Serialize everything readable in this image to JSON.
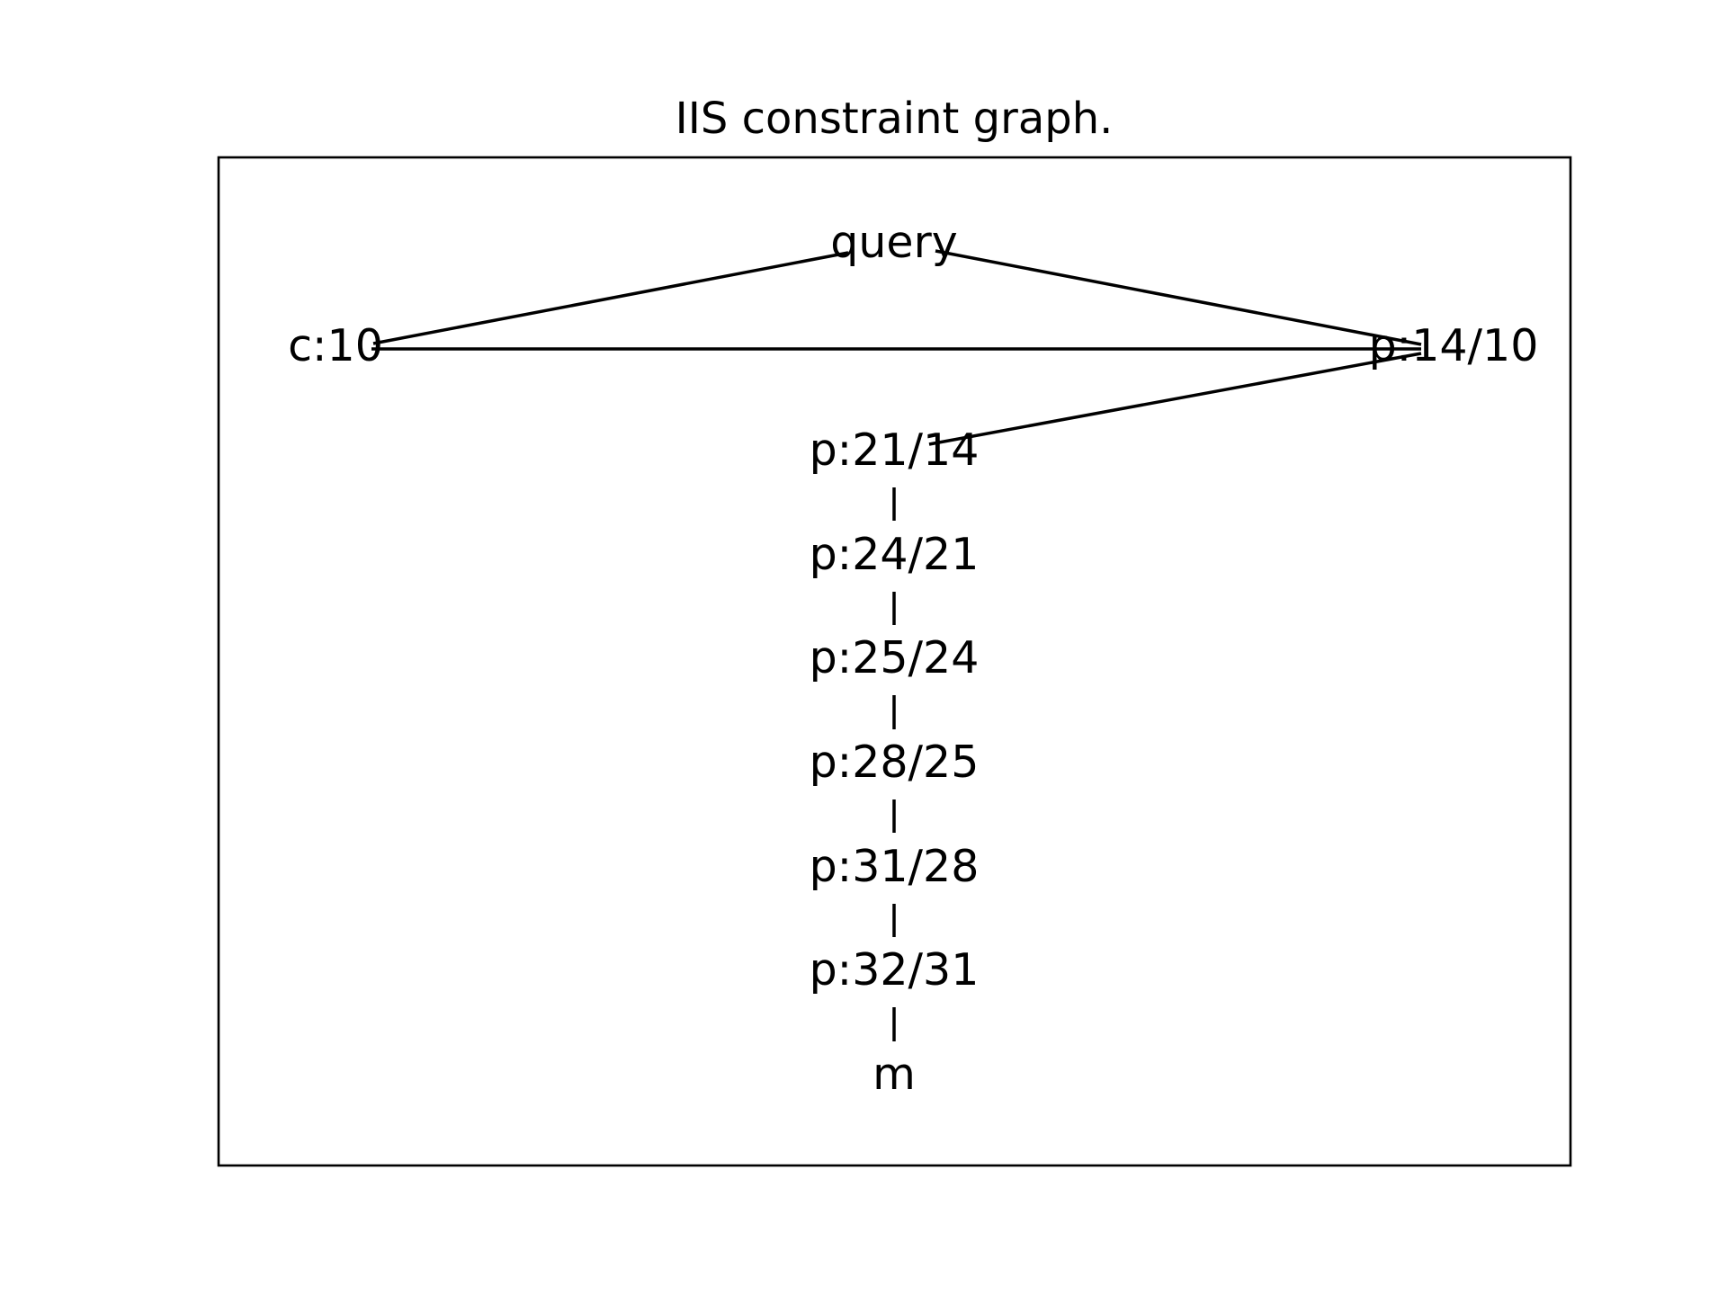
{
  "diagram": {
    "title": "IIS constraint graph.",
    "nodes": [
      {
        "id": "query",
        "label": "query"
      },
      {
        "id": "c10",
        "label": "c:10"
      },
      {
        "id": "p14_10",
        "label": "p:14/10"
      },
      {
        "id": "p21_14",
        "label": "p:21/14"
      },
      {
        "id": "p24_21",
        "label": "p:24/21"
      },
      {
        "id": "p25_24",
        "label": "p:25/24"
      },
      {
        "id": "p28_25",
        "label": "p:28/25"
      },
      {
        "id": "p31_28",
        "label": "p:31/28"
      },
      {
        "id": "p32_31",
        "label": "p:32/31"
      },
      {
        "id": "m",
        "label": "m"
      }
    ],
    "edges": [
      {
        "from": "query",
        "to": "c10"
      },
      {
        "from": "query",
        "to": "p14_10"
      },
      {
        "from": "c10",
        "to": "p14_10"
      },
      {
        "from": "p14_10",
        "to": "p21_14"
      },
      {
        "from": "p21_14",
        "to": "p24_21"
      },
      {
        "from": "p24_21",
        "to": "p25_24"
      },
      {
        "from": "p25_24",
        "to": "p28_25"
      },
      {
        "from": "p28_25",
        "to": "p31_28"
      },
      {
        "from": "p31_28",
        "to": "p32_31"
      },
      {
        "from": "p32_31",
        "to": "m"
      }
    ]
  },
  "colors": {
    "line": "#000000",
    "background": "#ffffff"
  }
}
